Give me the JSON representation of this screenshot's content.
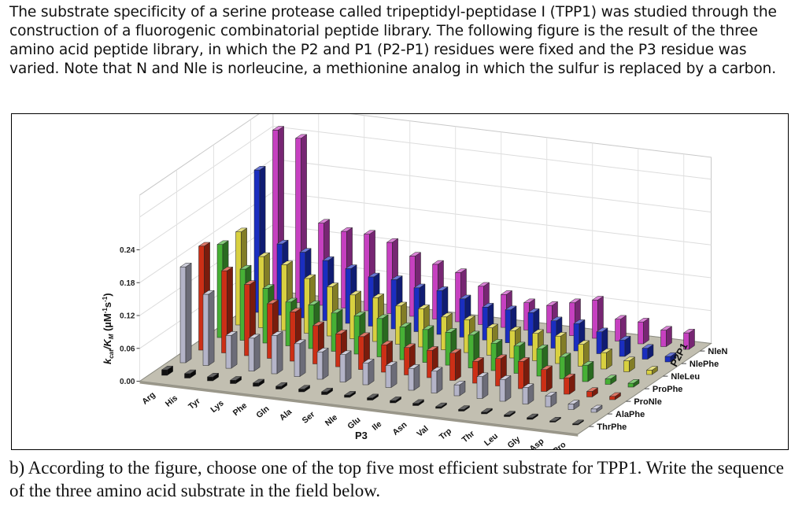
{
  "intro_text": "The substrate specificity of a serine protease called tripeptidyl-peptidase I (TPP1) was studied through the construction of a fluorogenic combinatorial peptide library. The following figure is the result of the three amino acid peptide library, in which the P2 and P1 (P2-P1) residues were fixed and the P3 residue was varied. Note that N and Nle is norleucine, a methionine analog in which the sulfur is replaced by a carbon.",
  "question_text": "b) According to the figure, choose one of the top five most efficient substrate for TPP1. Write the sequence of the three amino acid substrate in the field below.",
  "chart_data": {
    "type": "bar3d",
    "xlabel": "P3",
    "ylabel_main": "k",
    "ylabel_sub_cat": "cat",
    "ylabel_mid": "/K",
    "ylabel_sub_m": "M",
    "ylabel_unit": " (µM",
    "ylabel_sup": "-1",
    "ylabel_s": "s",
    "ylabel_end": ")",
    "zlabel": "P2P1",
    "ylim": [
      0,
      0.24
    ],
    "yticks": [
      "0.00",
      "0.06",
      "0.12",
      "0.18",
      "0.24"
    ],
    "grid": true,
    "categories": [
      "Arg",
      "His",
      "Tyr",
      "Lys",
      "Phe",
      "Gln",
      "Ala",
      "Ser",
      "Nle",
      "Glu",
      "Ile",
      "Asn",
      "Val",
      "Trp",
      "Thr",
      "Leu",
      "Gly",
      "Asp",
      "Pro"
    ],
    "series": [
      {
        "name": "ThrPhe",
        "color": "#111111",
        "values": [
          0.01,
          0.008,
          0.007,
          0.006,
          0.006,
          0.005,
          0.005,
          0.005,
          0.004,
          0.004,
          0.004,
          0.004,
          0.003,
          0.003,
          0.003,
          0.003,
          0.003,
          0.002,
          0.002
        ]
      },
      {
        "name": "AlaPhe",
        "color": "#b4b4c8",
        "values": [
          0.175,
          0.13,
          0.06,
          0.06,
          0.07,
          0.06,
          0.05,
          0.05,
          0.04,
          0.04,
          0.04,
          0.04,
          0.02,
          0.04,
          0.04,
          0.03,
          0.02,
          0.01,
          0.006
        ]
      },
      {
        "name": "ProNle",
        "color": "#cc2f16",
        "values": [
          0.19,
          0.15,
          0.13,
          0.1,
          0.09,
          0.07,
          0.06,
          0.06,
          0.05,
          0.05,
          0.05,
          0.05,
          0.04,
          0.05,
          0.05,
          0.04,
          0.03,
          0.01,
          0.006
        ]
      },
      {
        "name": "ProPhe",
        "color": "#46b035",
        "values": [
          0.17,
          0.13,
          0.1,
          0.08,
          0.08,
          0.07,
          0.07,
          0.07,
          0.06,
          0.06,
          0.06,
          0.06,
          0.05,
          0.05,
          0.05,
          0.04,
          0.03,
          0.01,
          0.007
        ]
      },
      {
        "name": "NleLeu",
        "color": "#d8d040",
        "values": [
          0.17,
          0.13,
          0.12,
          0.1,
          0.09,
          0.08,
          0.08,
          0.07,
          0.07,
          0.06,
          0.06,
          0.05,
          0.05,
          0.05,
          0.05,
          0.04,
          0.03,
          0.02,
          0.008
        ]
      },
      {
        "name": "NlePhe",
        "color": "#1a2ec0",
        "values": [
          0.26,
          0.13,
          0.12,
          0.11,
          0.1,
          0.09,
          0.09,
          0.08,
          0.08,
          0.07,
          0.06,
          0.06,
          0.06,
          0.05,
          0.05,
          0.04,
          0.03,
          0.02,
          0.01
        ]
      },
      {
        "name": "NleN",
        "color": "#c640c0",
        "values": [
          0.31,
          0.3,
          0.15,
          0.14,
          0.14,
          0.13,
          0.11,
          0.1,
          0.09,
          0.07,
          0.06,
          0.05,
          0.05,
          0.06,
          0.07,
          0.04,
          0.04,
          0.03,
          0.03
        ]
      }
    ]
  }
}
